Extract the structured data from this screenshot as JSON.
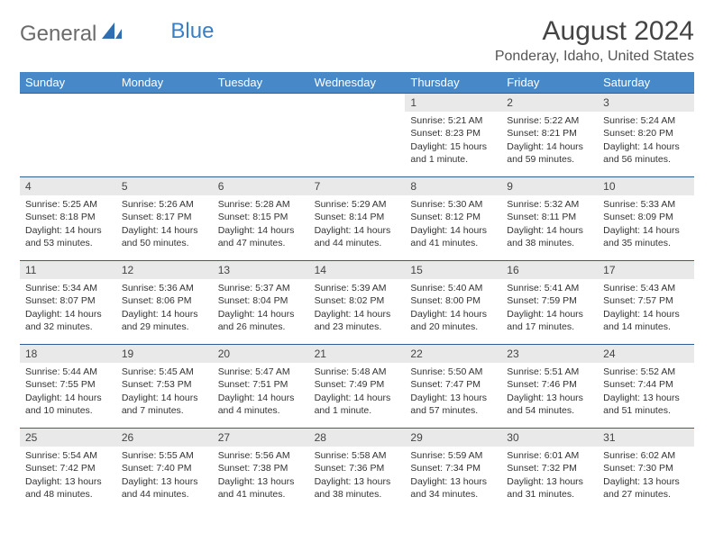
{
  "logo": {
    "text1": "General",
    "text2": "Blue"
  },
  "title": "August 2024",
  "location": "Ponderay, Idaho, United States",
  "colors": {
    "header_bg": "#4789c8",
    "header_text": "#ffffff",
    "daynum_bg": "#e9e9e9",
    "rule": "#2f5f8f",
    "logo_blue": "#3a7fc4",
    "text": "#333333"
  },
  "days_of_week": [
    "Sunday",
    "Monday",
    "Tuesday",
    "Wednesday",
    "Thursday",
    "Friday",
    "Saturday"
  ],
  "weeks": [
    [
      {
        "n": "",
        "sunrise": "",
        "sunset": "",
        "daylight": ""
      },
      {
        "n": "",
        "sunrise": "",
        "sunset": "",
        "daylight": ""
      },
      {
        "n": "",
        "sunrise": "",
        "sunset": "",
        "daylight": ""
      },
      {
        "n": "",
        "sunrise": "",
        "sunset": "",
        "daylight": ""
      },
      {
        "n": "1",
        "sunrise": "Sunrise: 5:21 AM",
        "sunset": "Sunset: 8:23 PM",
        "daylight": "Daylight: 15 hours and 1 minute."
      },
      {
        "n": "2",
        "sunrise": "Sunrise: 5:22 AM",
        "sunset": "Sunset: 8:21 PM",
        "daylight": "Daylight: 14 hours and 59 minutes."
      },
      {
        "n": "3",
        "sunrise": "Sunrise: 5:24 AM",
        "sunset": "Sunset: 8:20 PM",
        "daylight": "Daylight: 14 hours and 56 minutes."
      }
    ],
    [
      {
        "n": "4",
        "sunrise": "Sunrise: 5:25 AM",
        "sunset": "Sunset: 8:18 PM",
        "daylight": "Daylight: 14 hours and 53 minutes."
      },
      {
        "n": "5",
        "sunrise": "Sunrise: 5:26 AM",
        "sunset": "Sunset: 8:17 PM",
        "daylight": "Daylight: 14 hours and 50 minutes."
      },
      {
        "n": "6",
        "sunrise": "Sunrise: 5:28 AM",
        "sunset": "Sunset: 8:15 PM",
        "daylight": "Daylight: 14 hours and 47 minutes."
      },
      {
        "n": "7",
        "sunrise": "Sunrise: 5:29 AM",
        "sunset": "Sunset: 8:14 PM",
        "daylight": "Daylight: 14 hours and 44 minutes."
      },
      {
        "n": "8",
        "sunrise": "Sunrise: 5:30 AM",
        "sunset": "Sunset: 8:12 PM",
        "daylight": "Daylight: 14 hours and 41 minutes."
      },
      {
        "n": "9",
        "sunrise": "Sunrise: 5:32 AM",
        "sunset": "Sunset: 8:11 PM",
        "daylight": "Daylight: 14 hours and 38 minutes."
      },
      {
        "n": "10",
        "sunrise": "Sunrise: 5:33 AM",
        "sunset": "Sunset: 8:09 PM",
        "daylight": "Daylight: 14 hours and 35 minutes."
      }
    ],
    [
      {
        "n": "11",
        "sunrise": "Sunrise: 5:34 AM",
        "sunset": "Sunset: 8:07 PM",
        "daylight": "Daylight: 14 hours and 32 minutes."
      },
      {
        "n": "12",
        "sunrise": "Sunrise: 5:36 AM",
        "sunset": "Sunset: 8:06 PM",
        "daylight": "Daylight: 14 hours and 29 minutes."
      },
      {
        "n": "13",
        "sunrise": "Sunrise: 5:37 AM",
        "sunset": "Sunset: 8:04 PM",
        "daylight": "Daylight: 14 hours and 26 minutes."
      },
      {
        "n": "14",
        "sunrise": "Sunrise: 5:39 AM",
        "sunset": "Sunset: 8:02 PM",
        "daylight": "Daylight: 14 hours and 23 minutes."
      },
      {
        "n": "15",
        "sunrise": "Sunrise: 5:40 AM",
        "sunset": "Sunset: 8:00 PM",
        "daylight": "Daylight: 14 hours and 20 minutes."
      },
      {
        "n": "16",
        "sunrise": "Sunrise: 5:41 AM",
        "sunset": "Sunset: 7:59 PM",
        "daylight": "Daylight: 14 hours and 17 minutes."
      },
      {
        "n": "17",
        "sunrise": "Sunrise: 5:43 AM",
        "sunset": "Sunset: 7:57 PM",
        "daylight": "Daylight: 14 hours and 14 minutes."
      }
    ],
    [
      {
        "n": "18",
        "sunrise": "Sunrise: 5:44 AM",
        "sunset": "Sunset: 7:55 PM",
        "daylight": "Daylight: 14 hours and 10 minutes."
      },
      {
        "n": "19",
        "sunrise": "Sunrise: 5:45 AM",
        "sunset": "Sunset: 7:53 PM",
        "daylight": "Daylight: 14 hours and 7 minutes."
      },
      {
        "n": "20",
        "sunrise": "Sunrise: 5:47 AM",
        "sunset": "Sunset: 7:51 PM",
        "daylight": "Daylight: 14 hours and 4 minutes."
      },
      {
        "n": "21",
        "sunrise": "Sunrise: 5:48 AM",
        "sunset": "Sunset: 7:49 PM",
        "daylight": "Daylight: 14 hours and 1 minute."
      },
      {
        "n": "22",
        "sunrise": "Sunrise: 5:50 AM",
        "sunset": "Sunset: 7:47 PM",
        "daylight": "Daylight: 13 hours and 57 minutes."
      },
      {
        "n": "23",
        "sunrise": "Sunrise: 5:51 AM",
        "sunset": "Sunset: 7:46 PM",
        "daylight": "Daylight: 13 hours and 54 minutes."
      },
      {
        "n": "24",
        "sunrise": "Sunrise: 5:52 AM",
        "sunset": "Sunset: 7:44 PM",
        "daylight": "Daylight: 13 hours and 51 minutes."
      }
    ],
    [
      {
        "n": "25",
        "sunrise": "Sunrise: 5:54 AM",
        "sunset": "Sunset: 7:42 PM",
        "daylight": "Daylight: 13 hours and 48 minutes."
      },
      {
        "n": "26",
        "sunrise": "Sunrise: 5:55 AM",
        "sunset": "Sunset: 7:40 PM",
        "daylight": "Daylight: 13 hours and 44 minutes."
      },
      {
        "n": "27",
        "sunrise": "Sunrise: 5:56 AM",
        "sunset": "Sunset: 7:38 PM",
        "daylight": "Daylight: 13 hours and 41 minutes."
      },
      {
        "n": "28",
        "sunrise": "Sunrise: 5:58 AM",
        "sunset": "Sunset: 7:36 PM",
        "daylight": "Daylight: 13 hours and 38 minutes."
      },
      {
        "n": "29",
        "sunrise": "Sunrise: 5:59 AM",
        "sunset": "Sunset: 7:34 PM",
        "daylight": "Daylight: 13 hours and 34 minutes."
      },
      {
        "n": "30",
        "sunrise": "Sunrise: 6:01 AM",
        "sunset": "Sunset: 7:32 PM",
        "daylight": "Daylight: 13 hours and 31 minutes."
      },
      {
        "n": "31",
        "sunrise": "Sunrise: 6:02 AM",
        "sunset": "Sunset: 7:30 PM",
        "daylight": "Daylight: 13 hours and 27 minutes."
      }
    ]
  ]
}
